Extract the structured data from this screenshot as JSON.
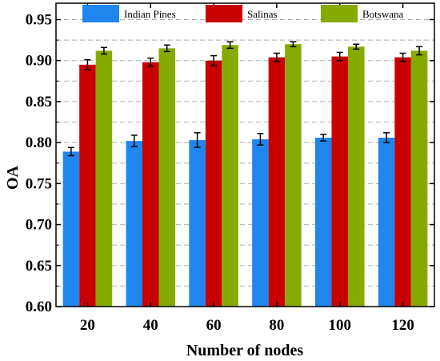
{
  "chart_data": {
    "type": "bar",
    "xlabel": "Number of nodes",
    "ylabel": "OA",
    "categories": [
      "20",
      "40",
      "60",
      "80",
      "100",
      "120"
    ],
    "ylim": [
      0.6,
      0.97
    ],
    "yticks": [
      "0.60",
      "0.65",
      "0.70",
      "0.75",
      "0.80",
      "0.85",
      "0.90",
      "0.95"
    ],
    "grid": "dashed horizontal",
    "legend_position": "top",
    "series": [
      {
        "name": "Indian Pines",
        "color": "#1f86f0",
        "values": [
          0.789,
          0.802,
          0.803,
          0.804,
          0.806,
          0.806
        ],
        "errors": [
          0.005,
          0.007,
          0.009,
          0.007,
          0.004,
          0.006
        ]
      },
      {
        "name": "Salinas",
        "color": "#c90000",
        "values": [
          0.895,
          0.898,
          0.9,
          0.904,
          0.905,
          0.904
        ],
        "errors": [
          0.006,
          0.005,
          0.006,
          0.005,
          0.005,
          0.005
        ]
      },
      {
        "name": "Botswana",
        "color": "#86aa00",
        "values": [
          0.912,
          0.915,
          0.919,
          0.92,
          0.917,
          0.912
        ],
        "errors": [
          0.004,
          0.004,
          0.004,
          0.003,
          0.003,
          0.005
        ]
      }
    ]
  }
}
